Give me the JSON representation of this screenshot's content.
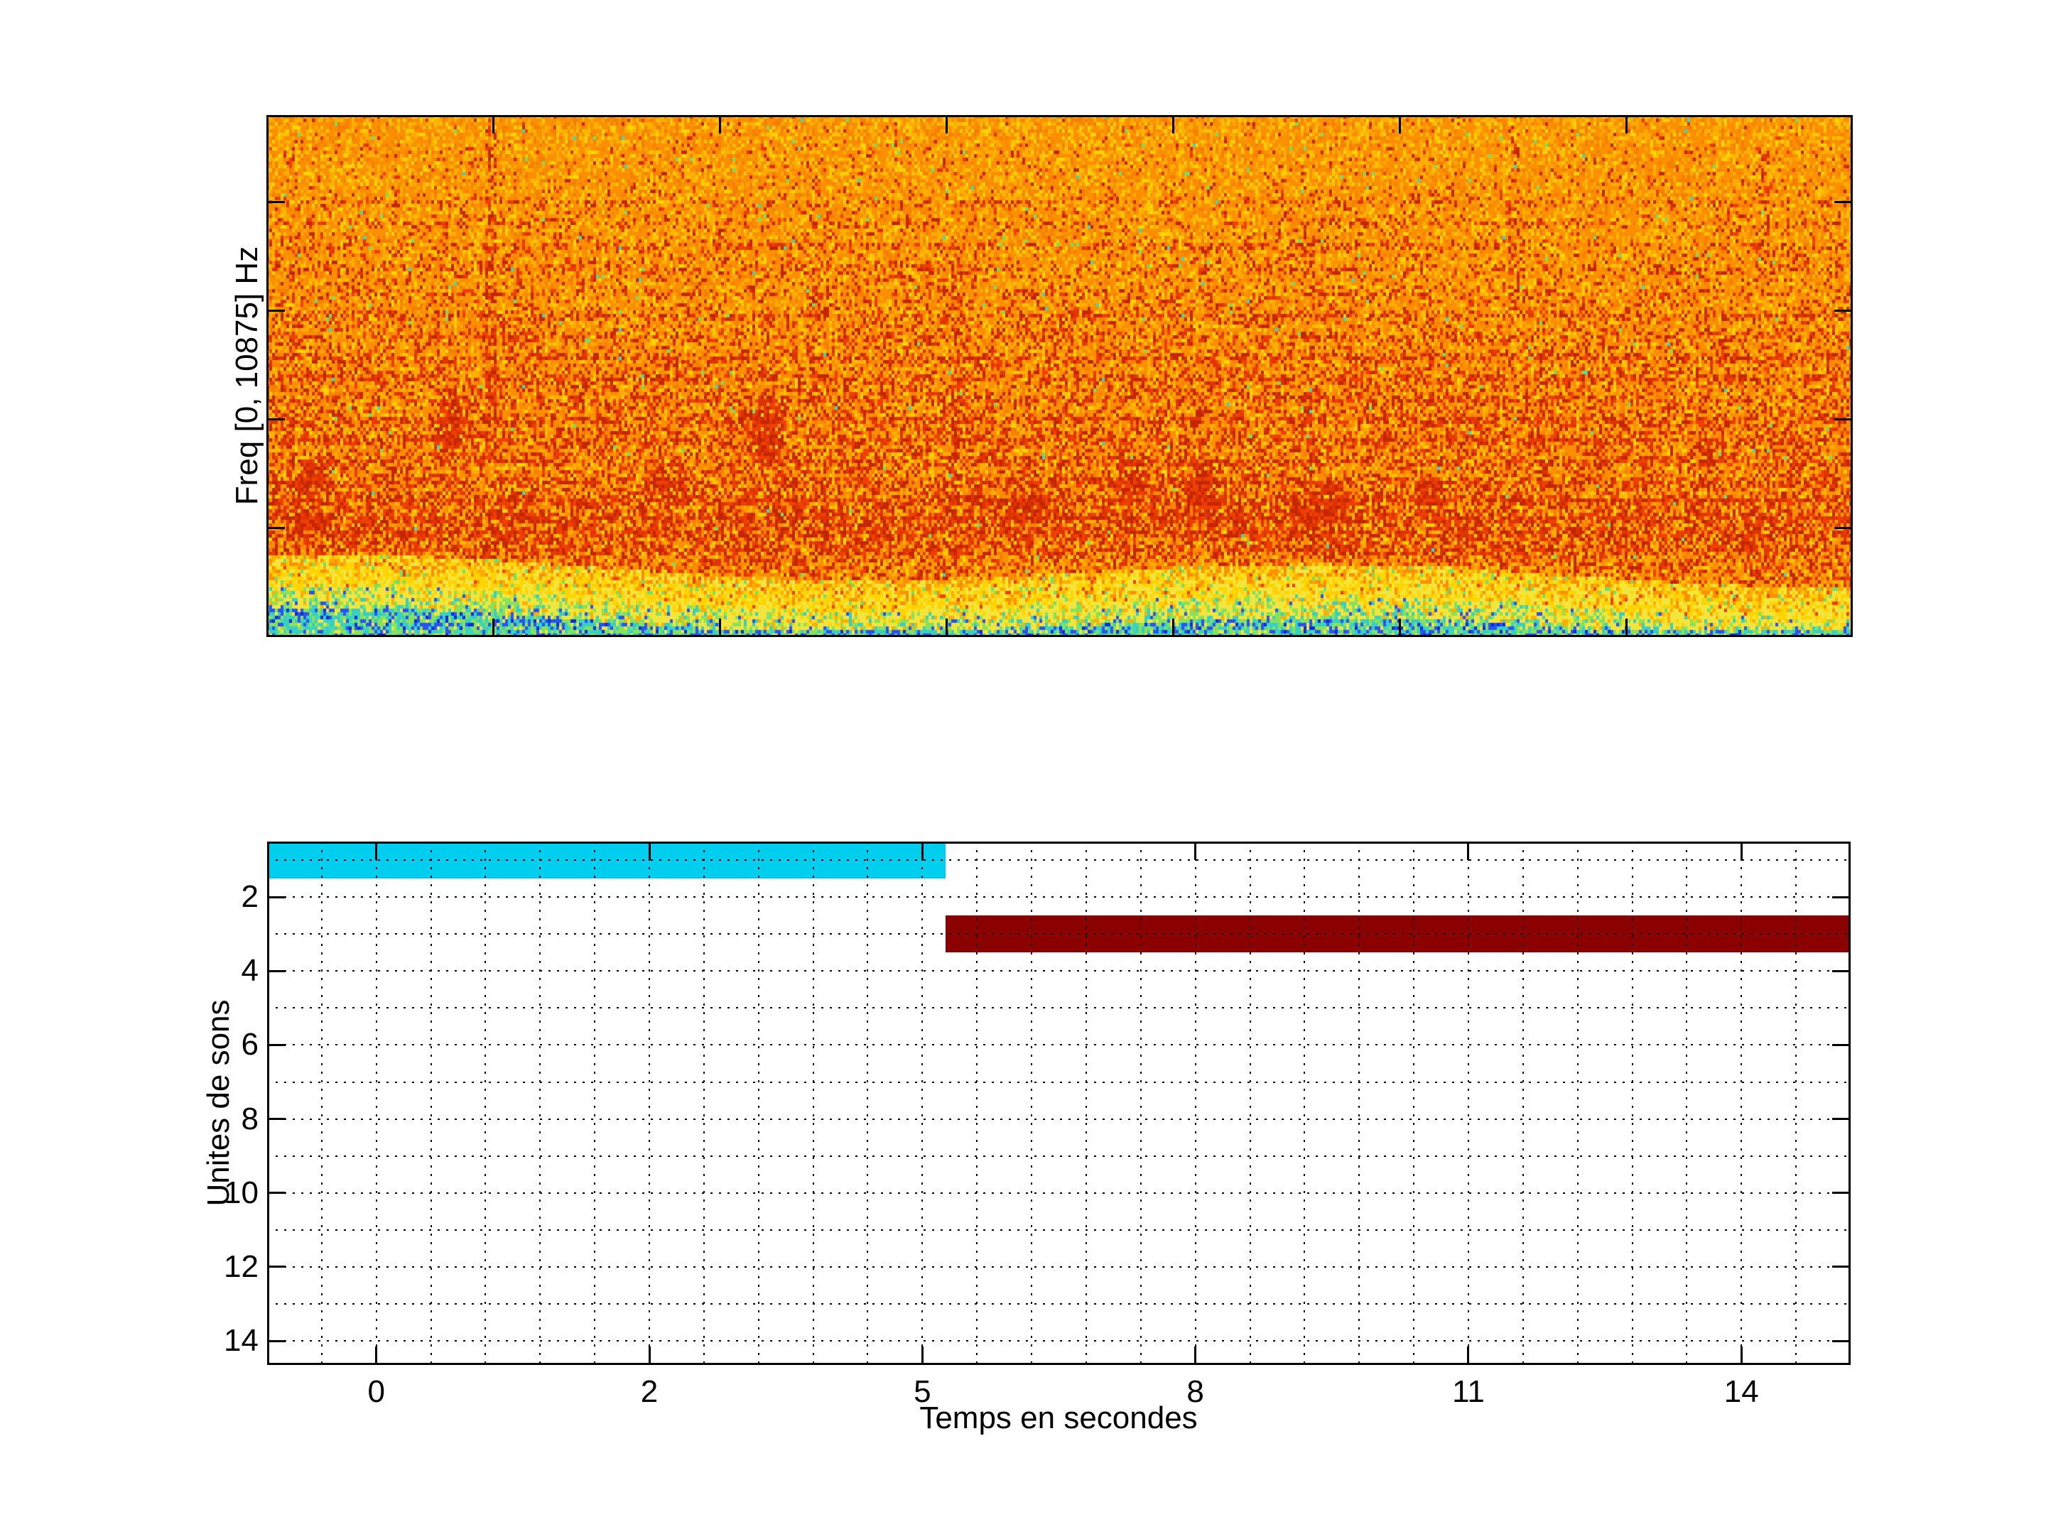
{
  "figure": {
    "background": "#ffffff",
    "top_chart": {
      "ylabel": "Freq [0, 10875] Hz"
    },
    "bottom_chart": {
      "ylabel": "Unites de sons",
      "xlabel": "Temps en secondes",
      "x_tick_labels": [
        "0",
        "2",
        "5",
        "8",
        "11",
        "14"
      ],
      "y_tick_labels": [
        "2",
        "4",
        "6",
        "8",
        "10",
        "12",
        "14"
      ],
      "grid_style": "dotted",
      "grid_color": "#000000",
      "bars": [
        {
          "name": "sound-unit-1",
          "row": 1,
          "color": "#00CEEF",
          "x_frac_start": 0.0,
          "x_frac_end": 0.4284,
          "start_s": -0.8,
          "end_s": 5.2
        },
        {
          "name": "sound-unit-3",
          "row": 3,
          "color": "#8B0000",
          "x_frac_start": 0.4284,
          "x_frac_end": 1.0,
          "start_s": 5.2,
          "end_s": 15.3
        }
      ]
    }
  },
  "chart_data": [
    {
      "type": "heatmap",
      "panel": "top",
      "title": "",
      "xlabel": "",
      "ylabel": "Freq [0, 10875] Hz",
      "y_range_hz": [
        0,
        10875
      ],
      "x_range_seconds": [
        0,
        14
      ],
      "x_tick_interval_seconds": 2,
      "x_tick_labels": [],
      "y_tick_labels": [],
      "colormap": "jet",
      "grid": false,
      "value_description": "Audio spectrogram of broadband noise: mostly high energy (orange) across the band, horizontal reddish harmonic striations between ~15% and ~85% of displayed depth, strongest dark-red concentration around 70-85% depth with localized dark blotches, a bright yellow low-energy band around 88-97% depth, and a thin cyan/green strip with blue flecks at the lowest frequencies."
    },
    {
      "type": "bar",
      "panel": "bottom",
      "orientation": "horizontal-gantt",
      "title": "",
      "xlabel": "Temps en secondes",
      "ylabel": "Unites de sons",
      "x_tick_labels": [
        "0",
        "2",
        "5",
        "8",
        "11",
        "14"
      ],
      "y_tick_labels": [
        "2",
        "4",
        "6",
        "8",
        "10",
        "12",
        "14"
      ],
      "ylim": [
        0.5,
        14.65
      ],
      "grid": "dotted both axes, minor x divisions every 1/5 of a major interval, horizontal lines at every integer unit",
      "legend": "none",
      "bars": [
        {
          "unit": 1,
          "start_s": -0.8,
          "end_s": 5.2,
          "color": "#00CEEF"
        },
        {
          "unit": 3,
          "start_s": 5.2,
          "end_s": 15.3,
          "color": "#8B0000"
        }
      ]
    }
  ],
  "spectrogram_texture": {
    "seed": 1337,
    "palette": {
      "orange": "#FC8F00",
      "orange2": "#F57F00",
      "orange_light": "#FFAD00",
      "yellow": "#FFD400",
      "yellow2": "#FFC300",
      "pale_yellow": "#F2E53E",
      "red": "#F04000",
      "red2": "#E03400",
      "dark_red": "#C42600",
      "green_speck": "#6FE06E",
      "teal_speck": "#3FD8B8",
      "green": "#86E25C",
      "cyan": "#37CFC4",
      "blue": "#2A52F0",
      "deep_blue": "#0B2BE0"
    },
    "bands": [
      [
        0.165,
        0.22
      ],
      [
        0.205,
        0.18
      ],
      [
        0.25,
        0.28
      ],
      [
        0.295,
        0.22
      ],
      [
        0.34,
        0.2
      ],
      [
        0.385,
        0.3
      ],
      [
        0.425,
        0.22
      ],
      [
        0.465,
        0.28
      ],
      [
        0.505,
        0.3
      ],
      [
        0.545,
        0.25
      ],
      [
        0.585,
        0.3
      ],
      [
        0.625,
        0.28
      ],
      [
        0.665,
        0.25
      ],
      [
        0.705,
        0.28
      ],
      [
        0.74,
        0.3
      ],
      [
        0.775,
        0.28
      ],
      [
        0.805,
        0.25
      ],
      [
        0.835,
        0.22
      ]
    ],
    "clusters": [
      [
        0.027,
        0.69,
        0.016,
        0.045,
        0.55
      ],
      [
        0.028,
        0.79,
        0.013,
        0.03,
        0.45
      ],
      [
        0.115,
        0.6,
        0.014,
        0.08,
        0.5
      ],
      [
        0.155,
        0.42,
        0.01,
        0.05,
        0.25
      ],
      [
        0.25,
        0.71,
        0.018,
        0.04,
        0.3
      ],
      [
        0.315,
        0.6,
        0.014,
        0.09,
        0.55
      ],
      [
        0.48,
        0.75,
        0.02,
        0.05,
        0.35
      ],
      [
        0.5,
        0.42,
        0.01,
        0.04,
        0.25
      ],
      [
        0.545,
        0.7,
        0.016,
        0.06,
        0.45
      ],
      [
        0.587,
        0.72,
        0.012,
        0.07,
        0.45
      ],
      [
        0.665,
        0.75,
        0.02,
        0.05,
        0.4
      ],
      [
        0.735,
        0.73,
        0.015,
        0.05,
        0.3
      ]
    ],
    "streaks": [
      [
        0.141,
        0.02,
        0.62,
        0.28,
        0.004
      ],
      [
        0.345,
        0.1,
        0.55,
        0.14,
        0.004
      ],
      [
        0.435,
        0.25,
        0.7,
        0.14,
        0.004
      ],
      [
        0.657,
        0.15,
        0.6,
        0.12,
        0.004
      ],
      [
        0.786,
        0.02,
        0.38,
        0.22,
        0.004
      ],
      [
        0.943,
        0.05,
        0.32,
        0.2,
        0.004
      ]
    ]
  }
}
